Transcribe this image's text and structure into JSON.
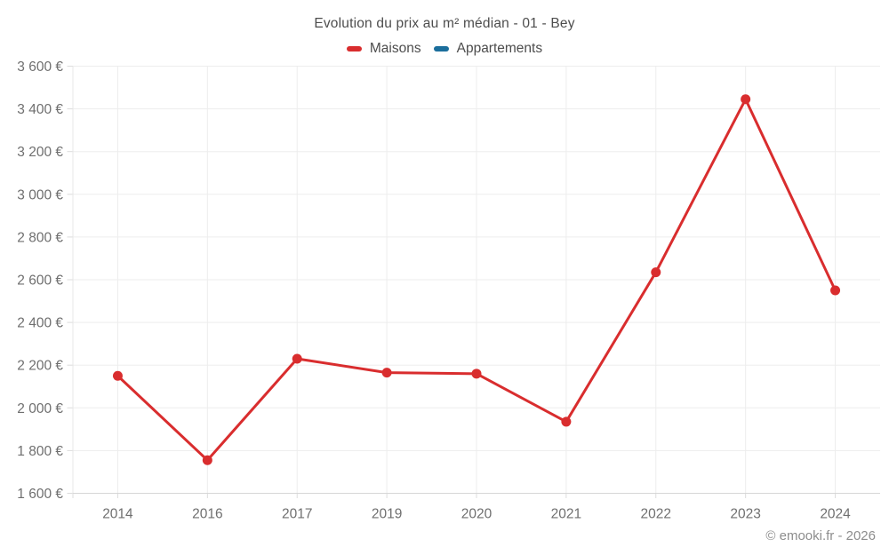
{
  "page": {
    "title": "Evolution du prix au m² médian - 01 - Bey",
    "copyright": "© emooki.fr - 2026"
  },
  "legend": {
    "items": [
      {
        "label": "Maisons",
        "color": "#d92d2e"
      },
      {
        "label": "Appartements",
        "color": "#1b6e9c"
      }
    ]
  },
  "chart_data": {
    "type": "line",
    "title": "Evolution du prix au m² médian - 01 - Bey",
    "categories": [
      "2014",
      "2016",
      "2017",
      "2019",
      "2020",
      "2021",
      "2022",
      "2023",
      "2024"
    ],
    "series": [
      {
        "name": "Maisons",
        "color": "#d92d2e",
        "values": [
          2150,
          1755,
          2230,
          2165,
          2160,
          1935,
          2635,
          3445,
          2550
        ]
      },
      {
        "name": "Appartements",
        "color": "#1b6e9c",
        "values": []
      }
    ],
    "xlabel": "",
    "ylabel": "",
    "ylim": [
      1600,
      3600
    ],
    "y_tick_step": 200,
    "y_tick_labels": [
      "1 600 €",
      "1 800 €",
      "2 000 €",
      "2 200 €",
      "2 400 €",
      "2 600 €",
      "2 800 €",
      "3 000 €",
      "3 200 €",
      "3 400 €",
      "3 600 €"
    ],
    "grid": true,
    "legend_position": "top",
    "point_radius": 5.5,
    "line_width": 3
  },
  "colors": {
    "grid": "#ededed",
    "plot_left_border": "#e7e7e7",
    "axis": "#d6d6d6",
    "tick": "#dcdcdc",
    "axis_text": "#6f6f6f"
  }
}
